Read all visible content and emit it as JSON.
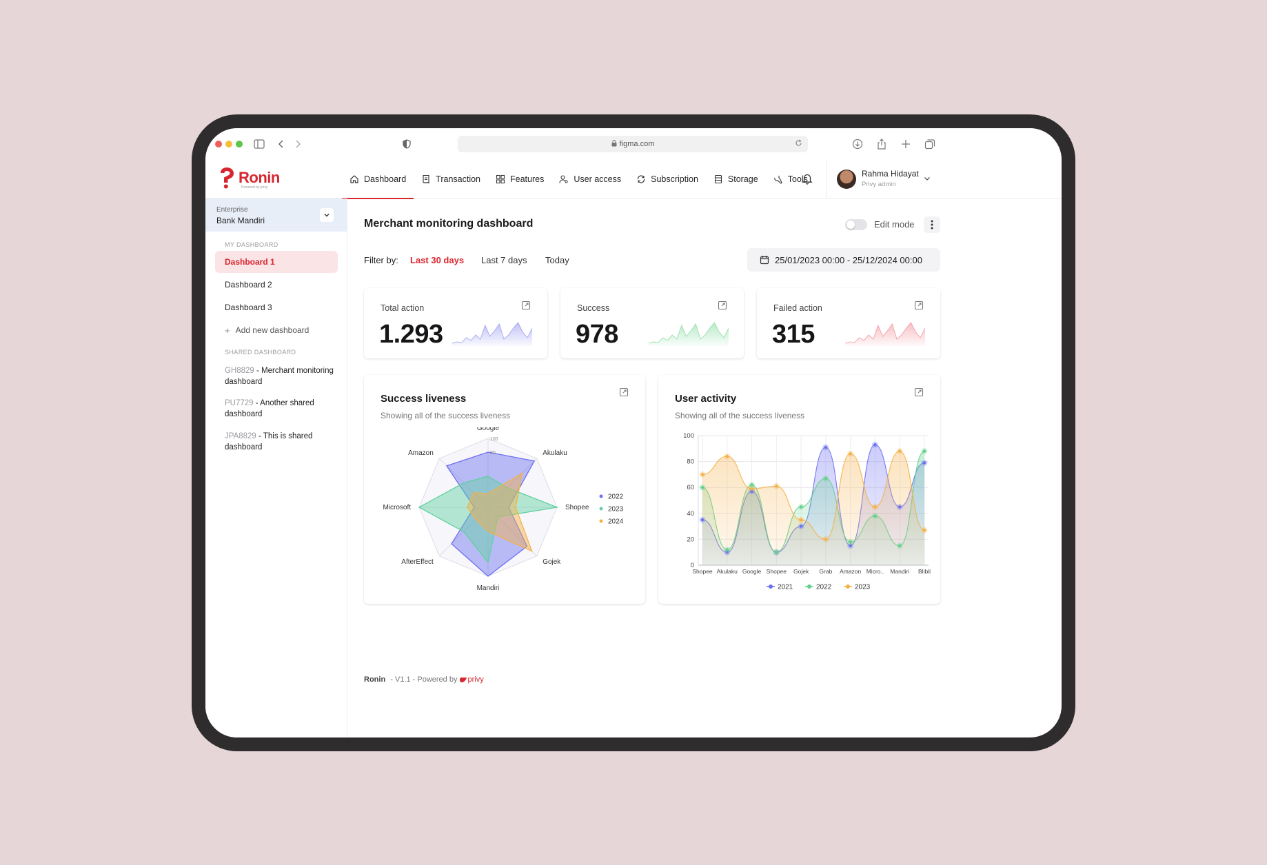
{
  "browser": {
    "url": "figma.com"
  },
  "app": {
    "logo_text": "Ronin",
    "logo_sub": "Powered by privy"
  },
  "nav": {
    "items": [
      {
        "label": "Dashboard",
        "icon": "home-icon"
      },
      {
        "label": "Transaction",
        "icon": "receipt-icon"
      },
      {
        "label": "Features",
        "icon": "grid-icon"
      },
      {
        "label": "User access",
        "icon": "user-key-icon"
      },
      {
        "label": "Subscription",
        "icon": "refresh-icon"
      },
      {
        "label": "Storage",
        "icon": "storage-icon"
      },
      {
        "label": "Tools",
        "icon": "tools-icon"
      }
    ]
  },
  "user": {
    "name": "Rahma Hidayat",
    "role": "Privy admin"
  },
  "sidebar": {
    "enterprise_label": "Enterprise",
    "enterprise_value": "Bank Mandiri",
    "my_dashboard_label": "MY DASHBOARD",
    "dashboards": [
      "Dashboard 1",
      "Dashboard 2",
      "Dashboard 3"
    ],
    "add_label": "Add new dashboard",
    "shared_label": "SHARED DASHBOARD",
    "shared": [
      {
        "code": "GH8829",
        "name": " - Merchant monitoring dashboard"
      },
      {
        "code": "PU7729",
        "name": " - Another shared dashboard"
      },
      {
        "code": "JPA8829",
        "name": " - This is shared dashboard"
      }
    ]
  },
  "main": {
    "title": "Merchant monitoring dashboard",
    "edit_mode_label": "Edit mode",
    "filter_label": "Filter by:",
    "filters": [
      "Last 30 days",
      "Last 7 days",
      "Today"
    ],
    "date_range": "25/01/2023 00:00 - 25/12/2024 00:00"
  },
  "stats": [
    {
      "title": "Total action",
      "value": "1.293",
      "color": "#8f8ff0"
    },
    {
      "title": "Success",
      "value": "978",
      "color": "#7fd99a"
    },
    {
      "title": "Failed action",
      "value": "315",
      "color": "#f08a94"
    }
  ],
  "footer": {
    "brand": "Ronin",
    "version": "V1.1",
    "powered": "Powered by",
    "partner": "privy"
  },
  "chart_data": [
    {
      "type": "radar",
      "title": "Success liveness",
      "subtitle": "Showing all of the success liveness",
      "categories": [
        "Google",
        "Akulaku",
        "Shopee",
        "Gojek",
        "Mandiri",
        "AfterEffect",
        "Microsoft",
        "Amazon"
      ],
      "rlim": [
        0,
        100
      ],
      "ticks": [
        "100",
        "80"
      ],
      "legend_position": "right",
      "series": [
        {
          "name": "2022",
          "color": "#6b6ff0",
          "values": [
            80,
            95,
            30,
            80,
            100,
            75,
            20,
            85
          ]
        },
        {
          "name": "2023",
          "color": "#5fd0a0",
          "values": [
            45,
            40,
            100,
            20,
            80,
            50,
            100,
            50
          ]
        },
        {
          "name": "2024",
          "color": "#f5b046",
          "values": [
            20,
            70,
            40,
            90,
            35,
            25,
            30,
            30
          ]
        }
      ]
    },
    {
      "type": "area",
      "title": "User activity",
      "subtitle": "Showing all of the success liveness",
      "categories": [
        "Shopee",
        "Akulaku",
        "Google",
        "Shopee",
        "Gojek",
        "Grab",
        "Amazon",
        "Micro..",
        "Mandiri",
        "Blibli"
      ],
      "ylim": [
        0,
        100
      ],
      "yticks": [
        "0",
        "20",
        "40",
        "60",
        "80",
        "100"
      ],
      "grid": true,
      "legend_position": "bottom",
      "series": [
        {
          "name": "2021",
          "color": "#6b6ff0",
          "values": [
            35,
            10,
            57,
            10,
            30,
            91,
            15,
            93,
            45,
            79
          ]
        },
        {
          "name": "2022",
          "color": "#5fd08a",
          "values": [
            60,
            12,
            62,
            10,
            45,
            67,
            18,
            38,
            15,
            88
          ]
        },
        {
          "name": "2023",
          "color": "#f5b046",
          "values": [
            70,
            84,
            59,
            61,
            35,
            20,
            86,
            45,
            88,
            27
          ]
        }
      ]
    }
  ]
}
